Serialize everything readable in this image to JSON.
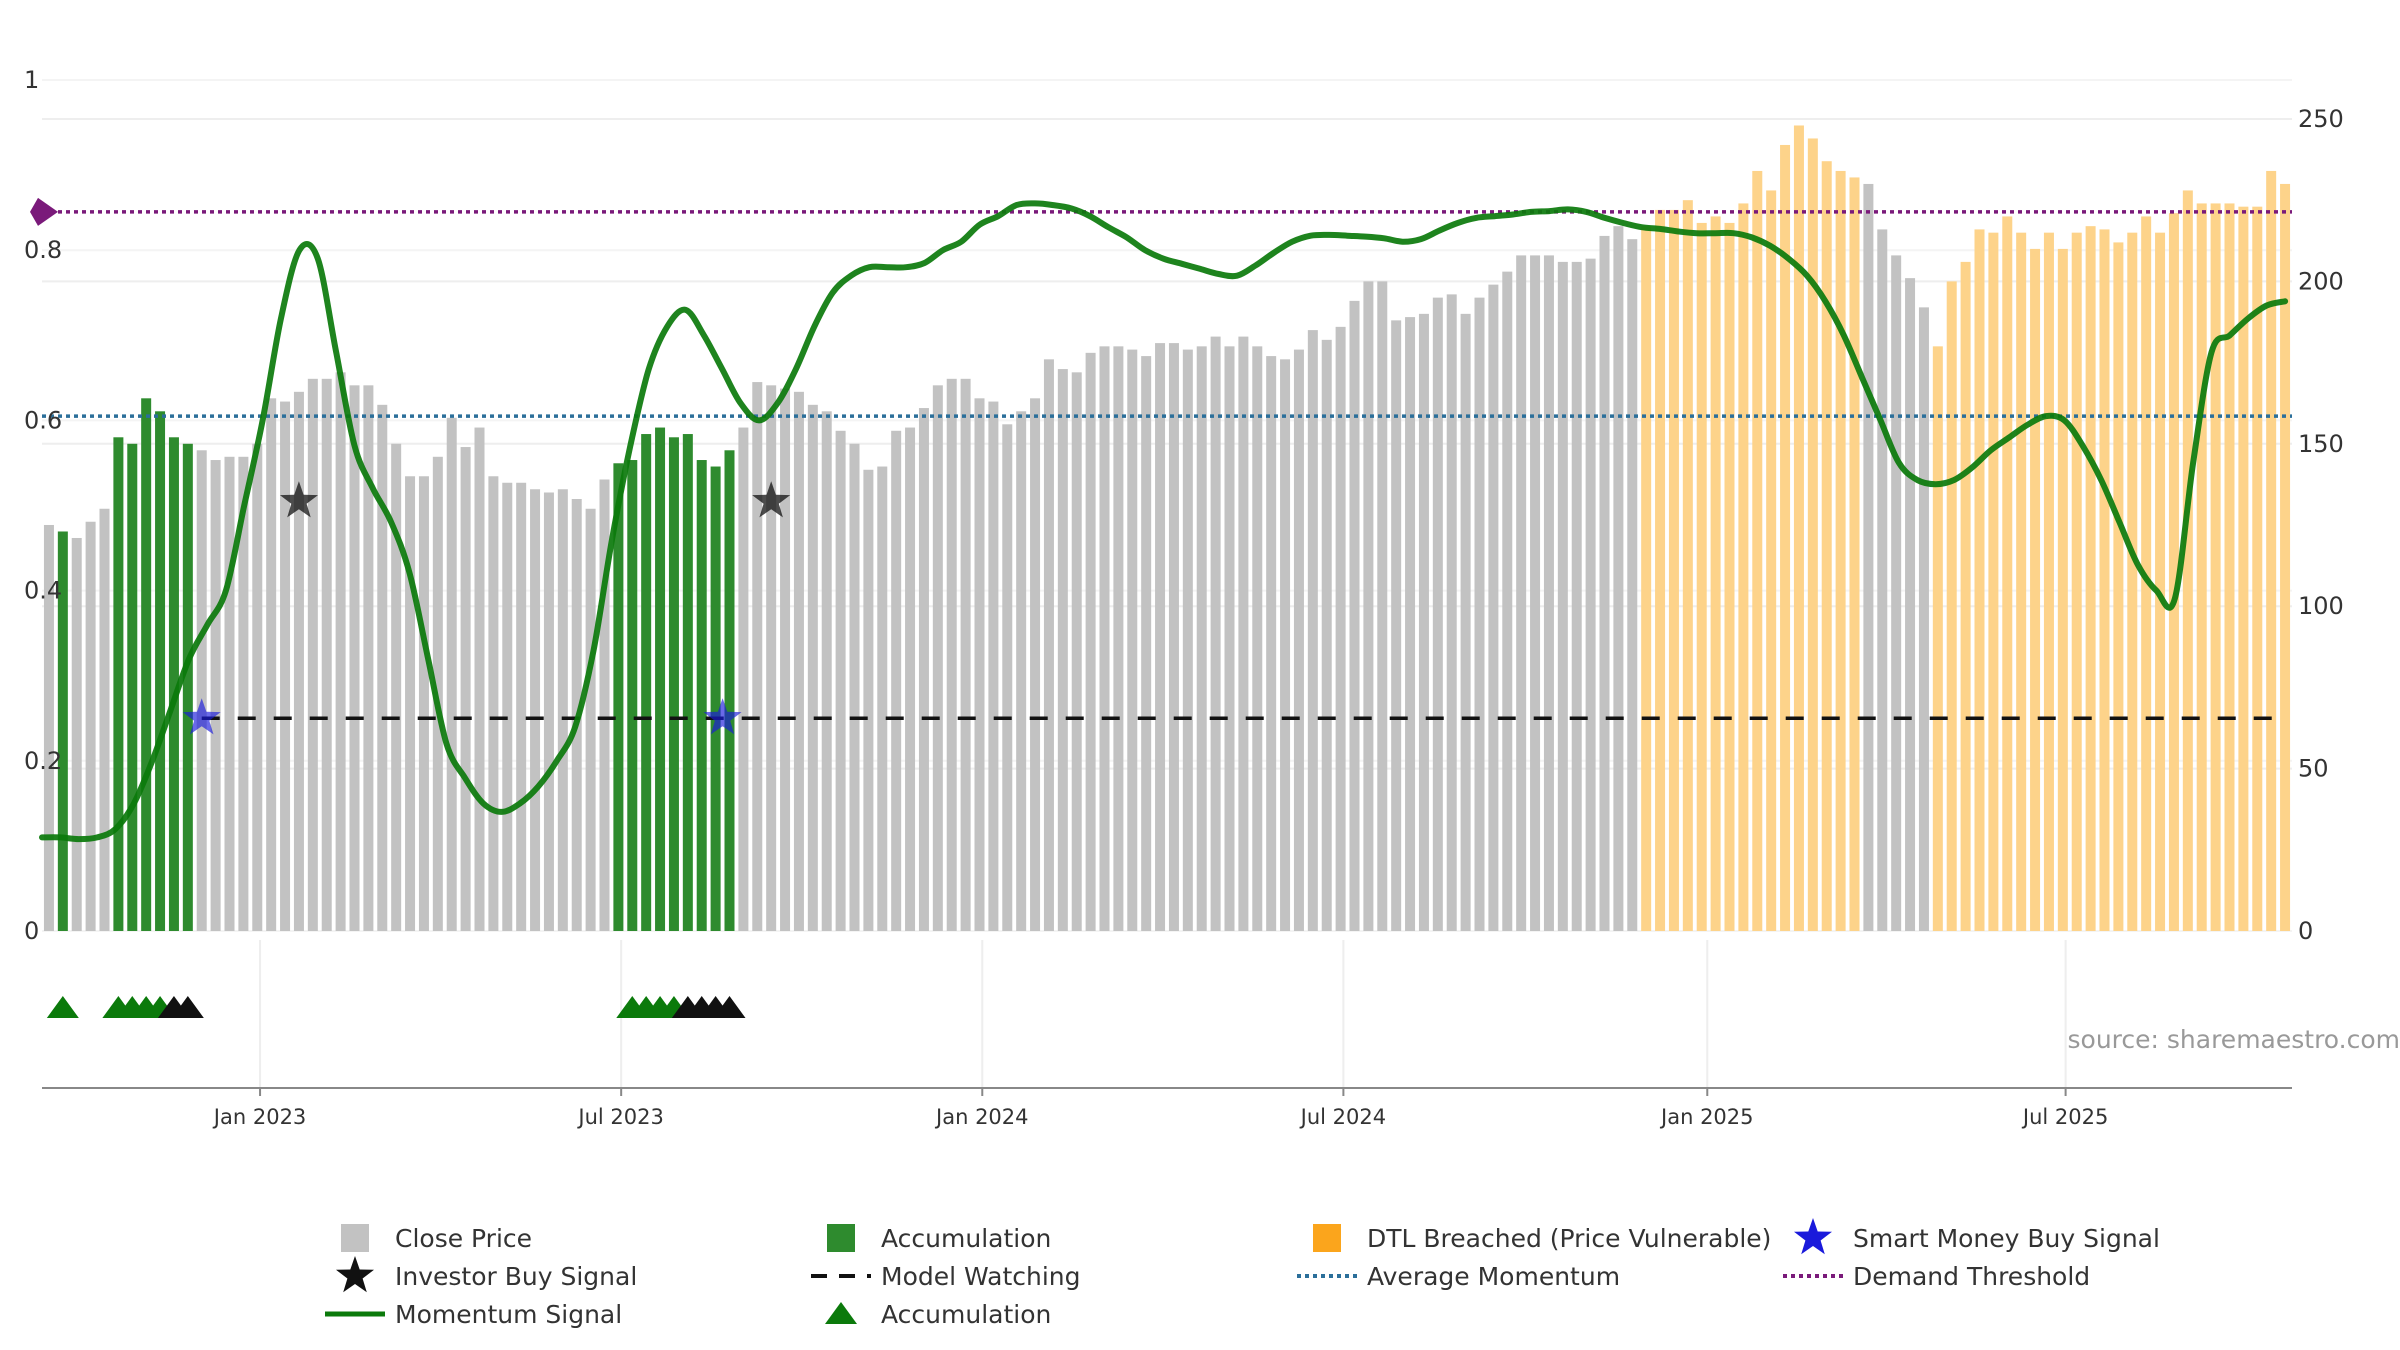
{
  "chart_data": {
    "type": "bar",
    "title": "",
    "source_label": "source: sharemaestro.com",
    "x_axis": {
      "tick_labels": [
        "Jan 2023",
        "Jul 2023",
        "Jan 2024",
        "Jul 2024",
        "Jan 2025",
        "Jul 2025"
      ],
      "tick_bar_positions": [
        15.2,
        41.2,
        67.2,
        93.2,
        119.4,
        145.2
      ]
    },
    "left_axis": {
      "range": [
        0,
        1
      ],
      "ticks": [
        0,
        0.2,
        0.4,
        0.6,
        0.8,
        1
      ],
      "tick_labels": [
        "0",
        "0.2",
        "0.4",
        "0.6",
        "0.8",
        "1"
      ]
    },
    "right_axis": {
      "range": [
        0,
        262
      ],
      "ticks": [
        0,
        50,
        100,
        150,
        200,
        250
      ],
      "tick_labels": [
        "0",
        "50",
        "100",
        "150",
        "200",
        "250"
      ]
    },
    "series": {
      "close_price": {
        "name": "Close Price",
        "categories": [
          "G",
          "A",
          "G",
          "G",
          "G",
          "A",
          "A",
          "A",
          "A",
          "A",
          "A",
          "G",
          "G",
          "G",
          "G",
          "G",
          "G",
          "G",
          "G",
          "G",
          "G",
          "G",
          "G",
          "G",
          "G",
          "G",
          "G",
          "G",
          "G",
          "G",
          "G",
          "G",
          "G",
          "G",
          "G",
          "G",
          "G",
          "G",
          "G",
          "G",
          "G",
          "A",
          "A",
          "A",
          "A",
          "A",
          "A",
          "A",
          "A",
          "A",
          "G",
          "G",
          "G",
          "G",
          "G",
          "G",
          "G",
          "G",
          "G",
          "G",
          "G",
          "G",
          "G",
          "G",
          "G",
          "G",
          "G",
          "G",
          "G",
          "G",
          "G",
          "G",
          "G",
          "G",
          "G",
          "G",
          "G",
          "G",
          "G",
          "G",
          "G",
          "G",
          "G",
          "G",
          "G",
          "G",
          "G",
          "G",
          "G",
          "G",
          "G",
          "G",
          "G",
          "G",
          "G",
          "G",
          "G",
          "G",
          "G",
          "G",
          "G",
          "G",
          "G",
          "G",
          "G",
          "G",
          "G",
          "G",
          "G",
          "G",
          "G",
          "G",
          "G",
          "G",
          "G",
          "O",
          "O",
          "O",
          "O",
          "O",
          "O",
          "O",
          "O",
          "O",
          "O",
          "O",
          "O",
          "O",
          "O",
          "O",
          "O",
          "G",
          "G",
          "G",
          "G",
          "G",
          "O",
          "O",
          "O",
          "O",
          "O",
          "O",
          "O",
          "O",
          "O",
          "O",
          "O",
          "O",
          "O",
          "O",
          "O",
          "O",
          "O",
          "O",
          "O",
          "O",
          "O",
          "O",
          "O",
          "O",
          "O",
          "O"
        ],
        "values": [
          125,
          123,
          121,
          126,
          130,
          152,
          150,
          164,
          160,
          152,
          150,
          148,
          145,
          146,
          146,
          150,
          164,
          163,
          166,
          170,
          170,
          172,
          168,
          168,
          162,
          150,
          140,
          140,
          146,
          158,
          149,
          155,
          140,
          138,
          138,
          136,
          135,
          136,
          133,
          130,
          139,
          144,
          145,
          153,
          155,
          152,
          153,
          145,
          143,
          148,
          155,
          169,
          168,
          167,
          166,
          162,
          160,
          154,
          150,
          142,
          143,
          154,
          155,
          161,
          168,
          170,
          170,
          164,
          163,
          156,
          160,
          164,
          176,
          173,
          172,
          178,
          180,
          180,
          179,
          177,
          181,
          181,
          179,
          180,
          183,
          180,
          183,
          180,
          177,
          176,
          179,
          185,
          182,
          186,
          194,
          200,
          200,
          188,
          189,
          190,
          195,
          196,
          190,
          195,
          199,
          203,
          208,
          208,
          208,
          206,
          206,
          207,
          214,
          217,
          213,
          217,
          222,
          222,
          225,
          218,
          220,
          218,
          224,
          234,
          228,
          242,
          248,
          244,
          237,
          234,
          232,
          230,
          216,
          208,
          201,
          192,
          180,
          200,
          206,
          216,
          215,
          220,
          215,
          210,
          215,
          210,
          215,
          217,
          216,
          212,
          215,
          220,
          215,
          221,
          228,
          224,
          224,
          224,
          223,
          223,
          234,
          230
        ],
        "value_axis": "right"
      },
      "momentum_signal": {
        "name": "Momentum Signal",
        "values": [
          0.11,
          0.11,
          0.108,
          0.11,
          0.12,
          0.15,
          0.2,
          0.26,
          0.32,
          0.36,
          0.4,
          0.5,
          0.6,
          0.72,
          0.8,
          0.79,
          0.68,
          0.57,
          0.52,
          0.48,
          0.42,
          0.32,
          0.22,
          0.18,
          0.15,
          0.14,
          0.15,
          0.17,
          0.2,
          0.24,
          0.33,
          0.46,
          0.57,
          0.66,
          0.71,
          0.73,
          0.7,
          0.66,
          0.62,
          0.6,
          0.62,
          0.66,
          0.71,
          0.75,
          0.77,
          0.78,
          0.78,
          0.78,
          0.785,
          0.8,
          0.81,
          0.83,
          0.84,
          0.853,
          0.855,
          0.853,
          0.849,
          0.84,
          0.827,
          0.815,
          0.8,
          0.79,
          0.784,
          0.778,
          0.772,
          0.77,
          0.782,
          0.797,
          0.81,
          0.817,
          0.818,
          0.817,
          0.816,
          0.814,
          0.81,
          0.813,
          0.823,
          0.832,
          0.838,
          0.84,
          0.842,
          0.845,
          0.846,
          0.848,
          0.845,
          0.838,
          0.832,
          0.827,
          0.825,
          0.822,
          0.82,
          0.82,
          0.82,
          0.815,
          0.805,
          0.79,
          0.77,
          0.74,
          0.7,
          0.65,
          0.6,
          0.55,
          0.53,
          0.525,
          0.53,
          0.545,
          0.565,
          0.58,
          0.595,
          0.605,
          0.6,
          0.57,
          0.53,
          0.48,
          0.43,
          0.4,
          0.39,
          0.55,
          0.68,
          0.7,
          0.72,
          0.735,
          0.74
        ],
        "value_axis": "left"
      },
      "average_momentum": {
        "name": "Average Momentum",
        "value": 0.605
      },
      "demand_threshold": {
        "name": "Demand Threshold",
        "value": 0.845
      },
      "model_watching": {
        "name": "Model Watching",
        "value": 0.25,
        "start_bar": 11
      },
      "smart_money_buy_signal": {
        "name": "Smart Money Buy Signal",
        "points": [
          {
            "bar": 11,
            "value": 0.25
          },
          {
            "bar": 48.5,
            "value": 0.25
          }
        ]
      },
      "investor_buy_signal": {
        "name": "Investor Buy Signal",
        "points": [
          {
            "bar": 18,
            "value": 0.505
          },
          {
            "bar": 52,
            "value": 0.505
          }
        ]
      },
      "accumulation_markers": {
        "name": "Accumulation",
        "green_bars": [
          1,
          5,
          6,
          7,
          8,
          42,
          43,
          44,
          45
        ],
        "black_bars": [
          9,
          10,
          46,
          47,
          48,
          49
        ]
      }
    },
    "legend": [
      {
        "key": "close",
        "label": "Close Price"
      },
      {
        "key": "accum_bar",
        "label": "Accumulation"
      },
      {
        "key": "dtl",
        "label": "DTL Breached (Price Vulnerable)"
      },
      {
        "key": "smart",
        "label": "Smart Money Buy Signal"
      },
      {
        "key": "investor",
        "label": "Investor Buy Signal"
      },
      {
        "key": "watching",
        "label": "Model Watching"
      },
      {
        "key": "avg",
        "label": "Average Momentum"
      },
      {
        "key": "demand",
        "label": "Demand Threshold"
      },
      {
        "key": "momentum",
        "label": "Momentum Signal"
      },
      {
        "key": "accum_tri",
        "label": "Accumulation"
      }
    ],
    "colors": {
      "gray_bar": "#c2c2c2",
      "green_bar": "#2e8b2e",
      "orange_bar": "#fdd38a",
      "momentum": "#0b7a0b",
      "average": "#2b6f9a",
      "demand": "#7a1a7a",
      "smart_star": "#1a1adb",
      "investor_star": "#111111",
      "gridline": "#eeeeee",
      "axis": "#888888"
    }
  }
}
